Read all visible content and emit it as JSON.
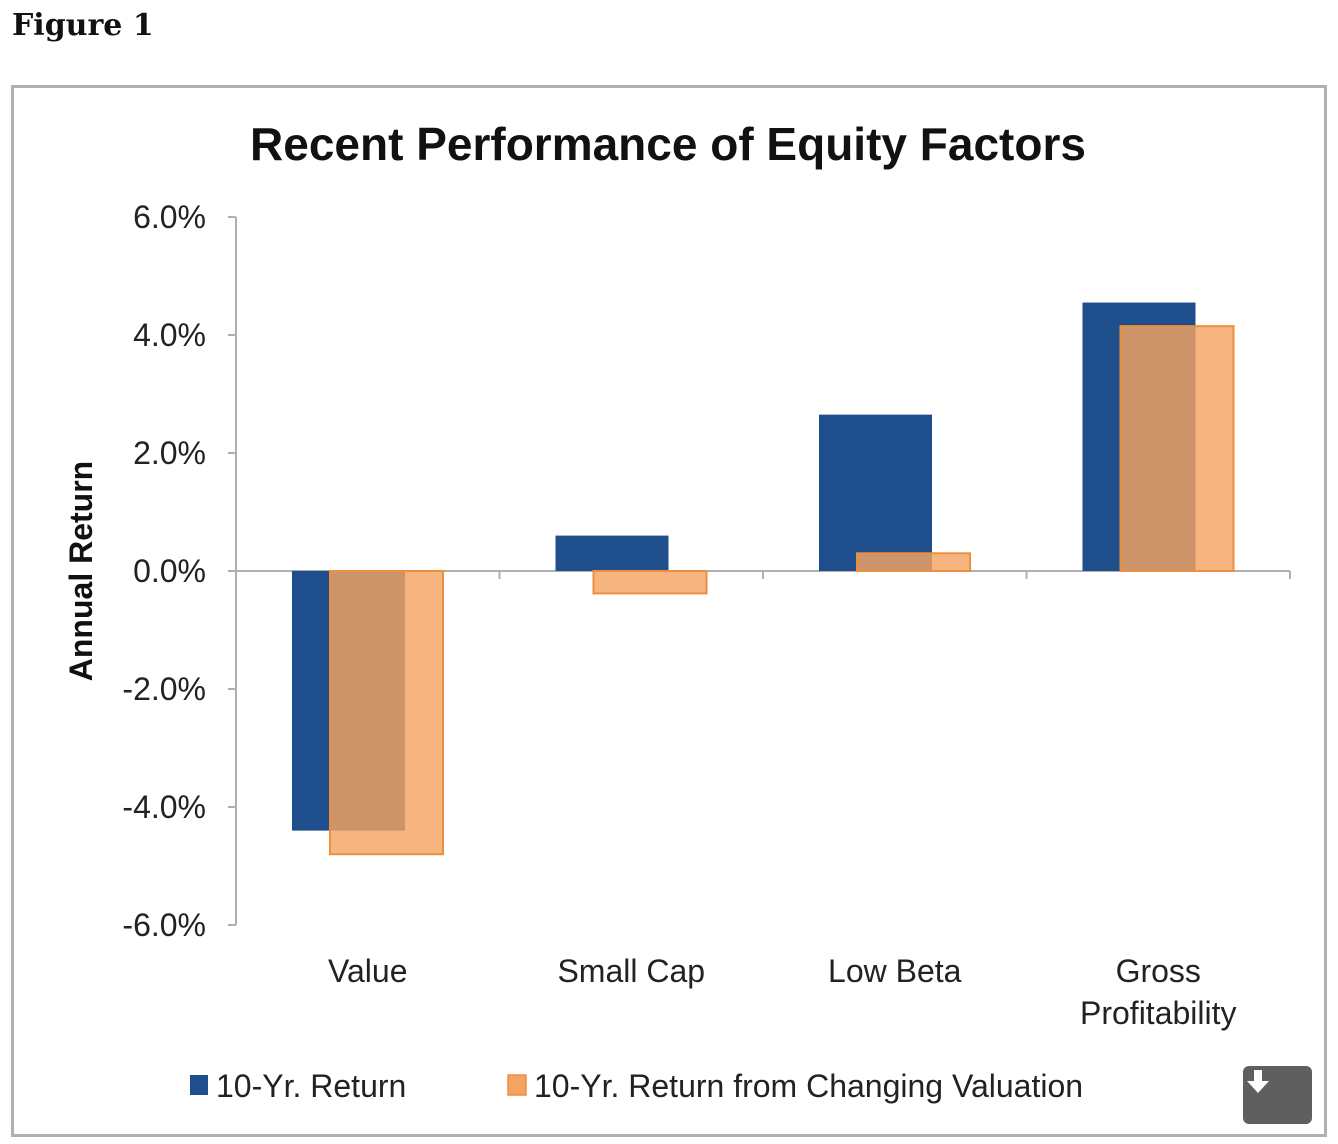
{
  "figure_label": "Figure 1",
  "download_icon": "download-arrow-icon",
  "colors": {
    "series_1": "#1f4e8c",
    "series_2": "#f4a461",
    "series_2_stroke": "#ee8f3d",
    "axis": "#b0b0b0",
    "button_bg": "#5f5f5f"
  },
  "chart_data": {
    "type": "bar",
    "title": "Recent Performance of Equity Factors",
    "ylabel": "Annual Return",
    "xlabel": "",
    "categories": [
      [
        "Value"
      ],
      [
        "Small Cap"
      ],
      [
        "Low Beta"
      ],
      [
        "Gross",
        "Profitability"
      ]
    ],
    "series": [
      {
        "name": "10-Yr. Return",
        "values": [
          -4.4,
          0.6,
          2.65,
          4.55
        ]
      },
      {
        "name": "10-Yr. Return from Changing Valuation",
        "values": [
          -4.8,
          -0.38,
          0.3,
          4.15
        ]
      }
    ],
    "ylim": [
      -6,
      6
    ],
    "yticks": [
      6,
      4,
      2,
      0,
      -2,
      -4,
      -6
    ],
    "ytick_labels": [
      "6.0%",
      "4.0%",
      "2.0%",
      "0.0%",
      "-2.0%",
      "-4.0%",
      "-6.0%"
    ],
    "grid": false,
    "legend_position": "bottom"
  }
}
